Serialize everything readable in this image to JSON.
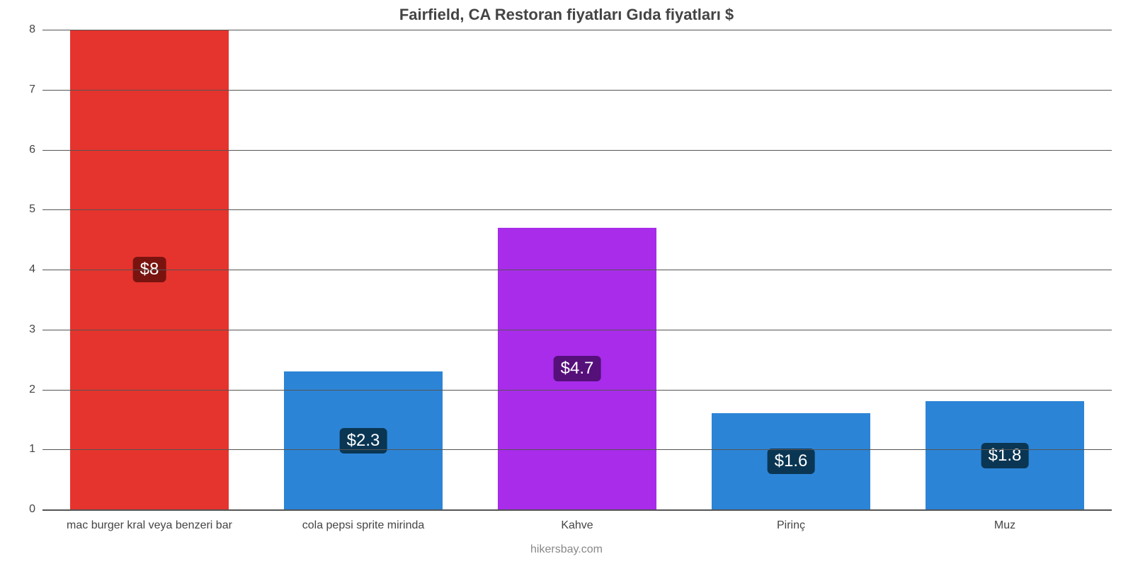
{
  "chart": {
    "type": "bar",
    "title": "Fairfield, CA Restoran fiyatları Gıda fiyatları $",
    "title_fontsize": 22,
    "title_color": "#444444",
    "footer": "hikersbay.com",
    "footer_fontsize": 16,
    "footer_color": "#888888",
    "background_color": "#ffffff",
    "axis_color": "#545454",
    "tick_fontsize": 16,
    "tick_color": "#444444",
    "ylim": [
      0,
      8
    ],
    "ytick_step": 1,
    "bar_width": 0.74,
    "value_label_fontsize": 24,
    "categories": [
      "mac burger kral veya benzeri bar",
      "cola pepsi sprite mirinda",
      "Kahve",
      "Pirinç",
      "Muz"
    ],
    "values": [
      8,
      2.3,
      4.7,
      1.6,
      1.8
    ],
    "value_labels": [
      "$8",
      "$2.3",
      "$4.7",
      "$1.6",
      "$1.8"
    ],
    "bar_colors": [
      "#e5342d",
      "#2c84d6",
      "#a82cea",
      "#2c84d6",
      "#2c84d6"
    ],
    "value_badge_bg": [
      "#791310",
      "#0a3653",
      "#55107a",
      "#0a3653",
      "#0a3653"
    ],
    "x_label_fontsize": 16
  }
}
